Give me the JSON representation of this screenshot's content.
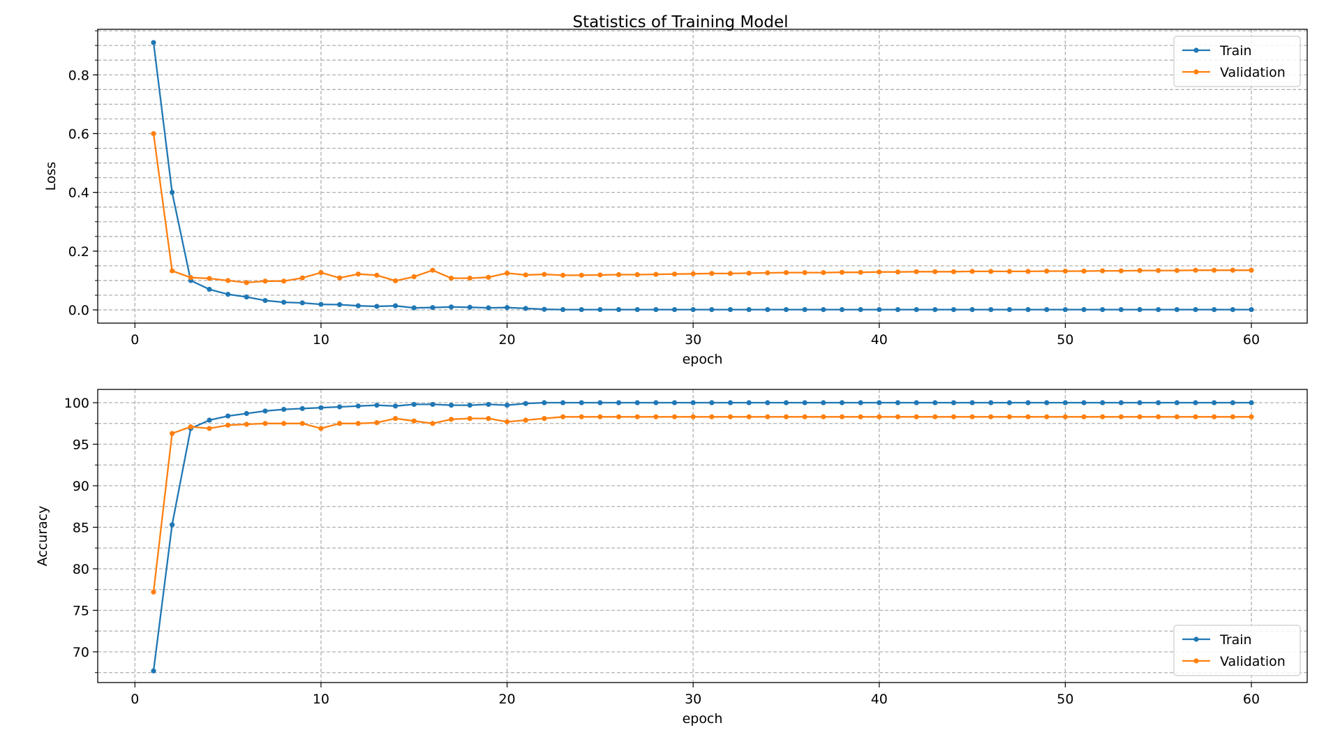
{
  "figure_title": "Statistics of Training Model",
  "colors": {
    "train": "#1f77b4",
    "validation": "#ff7f0e",
    "grid": "#b0b0b0"
  },
  "chart_data": [
    {
      "type": "line",
      "title": "",
      "xlabel": "epoch",
      "ylabel": "Loss",
      "xlim": [
        -2,
        63
      ],
      "ylim": [
        -0.045,
        0.955
      ],
      "xticks": [
        0,
        10,
        20,
        30,
        40,
        50,
        60
      ],
      "yticks": [
        0.0,
        0.2,
        0.4,
        0.6,
        0.8
      ],
      "ytick_labels": [
        "0.0",
        "0.2",
        "0.4",
        "0.6",
        "0.8"
      ],
      "minor_y_step": 0.05,
      "grid": true,
      "grid_style": "dashed, major and minor",
      "legend_position": "upper right",
      "x": [
        1,
        2,
        3,
        4,
        5,
        6,
        7,
        8,
        9,
        10,
        11,
        12,
        13,
        14,
        15,
        16,
        17,
        18,
        19,
        20,
        21,
        22,
        23,
        24,
        25,
        26,
        27,
        28,
        29,
        30,
        31,
        32,
        33,
        34,
        35,
        36,
        37,
        38,
        39,
        40,
        41,
        42,
        43,
        44,
        45,
        46,
        47,
        48,
        49,
        50,
        51,
        52,
        53,
        54,
        55,
        56,
        57,
        58,
        59,
        60
      ],
      "series": [
        {
          "name": "Train",
          "color": "#1f77b4",
          "values": [
            0.91,
            0.4,
            0.1,
            0.07,
            0.053,
            0.044,
            0.032,
            0.026,
            0.024,
            0.019,
            0.018,
            0.014,
            0.012,
            0.014,
            0.007,
            0.008,
            0.01,
            0.009,
            0.007,
            0.008,
            0.005,
            0.002,
            0.001,
            0.001,
            0.001,
            0.001,
            0.001,
            0.001,
            0.001,
            0.001,
            0.001,
            0.001,
            0.001,
            0.001,
            0.001,
            0.001,
            0.001,
            0.001,
            0.001,
            0.001,
            0.001,
            0.001,
            0.001,
            0.001,
            0.001,
            0.001,
            0.001,
            0.001,
            0.001,
            0.001,
            0.001,
            0.001,
            0.001,
            0.001,
            0.001,
            0.001,
            0.001,
            0.001,
            0.001,
            0.001
          ]
        },
        {
          "name": "Validation",
          "color": "#ff7f0e",
          "values": [
            0.6,
            0.133,
            0.11,
            0.107,
            0.1,
            0.093,
            0.098,
            0.098,
            0.109,
            0.127,
            0.109,
            0.122,
            0.118,
            0.099,
            0.113,
            0.135,
            0.108,
            0.108,
            0.111,
            0.125,
            0.119,
            0.121,
            0.118,
            0.118,
            0.119,
            0.12,
            0.12,
            0.121,
            0.122,
            0.123,
            0.124,
            0.124,
            0.125,
            0.126,
            0.127,
            0.127,
            0.127,
            0.128,
            0.128,
            0.129,
            0.129,
            0.13,
            0.13,
            0.13,
            0.131,
            0.131,
            0.131,
            0.131,
            0.132,
            0.132,
            0.132,
            0.133,
            0.133,
            0.134,
            0.134,
            0.134,
            0.135,
            0.135,
            0.135,
            0.135
          ]
        }
      ]
    },
    {
      "type": "line",
      "title": "",
      "xlabel": "epoch",
      "ylabel": "Accuracy",
      "xlim": [
        -2,
        63
      ],
      "ylim": [
        66.3,
        101.6
      ],
      "xticks": [
        0,
        10,
        20,
        30,
        40,
        50,
        60
      ],
      "yticks": [
        70,
        75,
        80,
        85,
        90,
        95,
        100
      ],
      "ytick_labels": [
        "70",
        "75",
        "80",
        "85",
        "90",
        "95",
        "100"
      ],
      "minor_y_step": 2.5,
      "grid": true,
      "grid_style": "dashed, major and minor",
      "legend_position": "lower right",
      "x": [
        1,
        2,
        3,
        4,
        5,
        6,
        7,
        8,
        9,
        10,
        11,
        12,
        13,
        14,
        15,
        16,
        17,
        18,
        19,
        20,
        21,
        22,
        23,
        24,
        25,
        26,
        27,
        28,
        29,
        30,
        31,
        32,
        33,
        34,
        35,
        36,
        37,
        38,
        39,
        40,
        41,
        42,
        43,
        44,
        45,
        46,
        47,
        48,
        49,
        50,
        51,
        52,
        53,
        54,
        55,
        56,
        57,
        58,
        59,
        60
      ],
      "series": [
        {
          "name": "Train",
          "color": "#1f77b4",
          "values": [
            67.7,
            85.3,
            96.9,
            97.9,
            98.4,
            98.7,
            99.0,
            99.2,
            99.3,
            99.4,
            99.5,
            99.6,
            99.7,
            99.6,
            99.8,
            99.8,
            99.7,
            99.7,
            99.8,
            99.7,
            99.9,
            100,
            100,
            100,
            100,
            100,
            100,
            100,
            100,
            100,
            100,
            100,
            100,
            100,
            100,
            100,
            100,
            100,
            100,
            100,
            100,
            100,
            100,
            100,
            100,
            100,
            100,
            100,
            100,
            100,
            100,
            100,
            100,
            100,
            100,
            100,
            100,
            100,
            100,
            100
          ]
        },
        {
          "name": "Validation",
          "color": "#ff7f0e",
          "values": [
            77.2,
            96.3,
            97.1,
            96.9,
            97.3,
            97.4,
            97.5,
            97.5,
            97.5,
            96.9,
            97.5,
            97.5,
            97.6,
            98.1,
            97.8,
            97.5,
            98.0,
            98.1,
            98.1,
            97.7,
            97.9,
            98.1,
            98.3,
            98.3,
            98.3,
            98.3,
            98.3,
            98.3,
            98.3,
            98.3,
            98.3,
            98.3,
            98.3,
            98.3,
            98.3,
            98.3,
            98.3,
            98.3,
            98.3,
            98.3,
            98.3,
            98.3,
            98.3,
            98.3,
            98.3,
            98.3,
            98.3,
            98.3,
            98.3,
            98.3,
            98.3,
            98.3,
            98.3,
            98.3,
            98.3,
            98.3,
            98.3,
            98.3,
            98.3,
            98.3
          ]
        }
      ]
    }
  ]
}
